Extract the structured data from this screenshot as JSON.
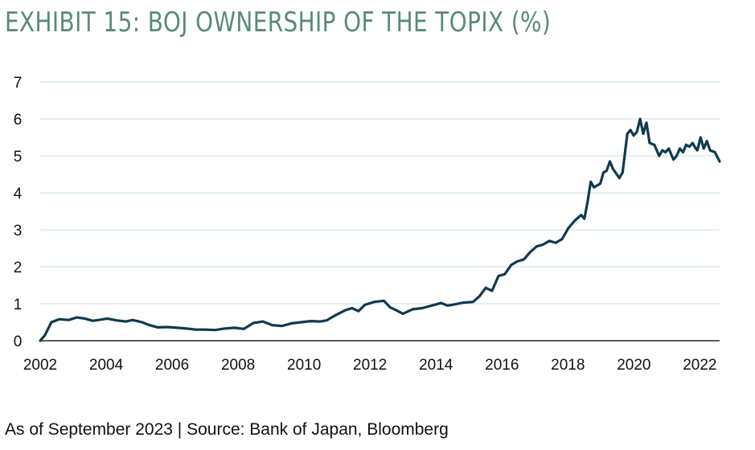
{
  "title": "EXHIBIT 15: BOJ OWNERSHIP OF THE TOPIX (%)",
  "footnote": "As of September 2023 | Source: Bank of Japan, Bloomberg",
  "colors": {
    "title": "#5a8a78",
    "line": "#0f3a4f",
    "grid": "#c9dde6",
    "axis": "#222222"
  },
  "chart_data": {
    "type": "line",
    "title": "EXHIBIT 15: BOJ OWNERSHIP OF THE TOPIX (%)",
    "xlabel": "",
    "ylabel": "",
    "xlim": [
      2002,
      2022.6
    ],
    "ylim": [
      0,
      7
    ],
    "grid": true,
    "x_ticks": [
      2002,
      2004,
      2006,
      2008,
      2010,
      2012,
      2014,
      2016,
      2018,
      2020,
      2022
    ],
    "y_ticks": [
      0,
      1,
      2,
      3,
      4,
      5,
      6,
      7
    ],
    "series": [
      {
        "values": [
          [
            2002.0,
            0.0
          ],
          [
            2002.15,
            0.15
          ],
          [
            2002.35,
            0.5
          ],
          [
            2002.6,
            0.58
          ],
          [
            2002.9,
            0.56
          ],
          [
            2003.15,
            0.63
          ],
          [
            2003.4,
            0.6
          ],
          [
            2003.65,
            0.54
          ],
          [
            2003.9,
            0.57
          ],
          [
            2004.1,
            0.6
          ],
          [
            2004.4,
            0.55
          ],
          [
            2004.7,
            0.52
          ],
          [
            2004.9,
            0.56
          ],
          [
            2005.2,
            0.5
          ],
          [
            2005.4,
            0.43
          ],
          [
            2005.7,
            0.36
          ],
          [
            2006.0,
            0.37
          ],
          [
            2006.3,
            0.35
          ],
          [
            2006.6,
            0.33
          ],
          [
            2006.9,
            0.3
          ],
          [
            2007.2,
            0.3
          ],
          [
            2007.5,
            0.29
          ],
          [
            2007.8,
            0.33
          ],
          [
            2008.1,
            0.35
          ],
          [
            2008.4,
            0.32
          ],
          [
            2008.7,
            0.48
          ],
          [
            2009.0,
            0.52
          ],
          [
            2009.3,
            0.42
          ],
          [
            2009.6,
            0.4
          ],
          [
            2009.9,
            0.47
          ],
          [
            2010.2,
            0.5
          ],
          [
            2010.5,
            0.53
          ],
          [
            2010.8,
            0.52
          ],
          [
            2011.0,
            0.55
          ],
          [
            2011.3,
            0.7
          ],
          [
            2011.6,
            0.83
          ],
          [
            2011.8,
            0.88
          ],
          [
            2012.0,
            0.8
          ],
          [
            2012.2,
            0.97
          ],
          [
            2012.5,
            1.05
          ],
          [
            2012.8,
            1.08
          ],
          [
            2013.0,
            0.9
          ],
          [
            2013.2,
            0.82
          ],
          [
            2013.4,
            0.73
          ],
          [
            2013.7,
            0.85
          ],
          [
            2014.0,
            0.88
          ],
          [
            2014.3,
            0.95
          ],
          [
            2014.6,
            1.02
          ],
          [
            2014.8,
            0.95
          ],
          [
            2015.0,
            0.98
          ],
          [
            2015.3,
            1.03
          ],
          [
            2015.6,
            1.05
          ],
          [
            2015.8,
            1.2
          ],
          [
            2016.0,
            1.43
          ],
          [
            2016.2,
            1.35
          ],
          [
            2016.4,
            1.75
          ],
          [
            2016.6,
            1.8
          ],
          [
            2016.8,
            2.05
          ],
          [
            2017.0,
            2.15
          ],
          [
            2017.2,
            2.2
          ],
          [
            2017.4,
            2.4
          ],
          [
            2017.6,
            2.55
          ],
          [
            2017.8,
            2.6
          ],
          [
            2018.0,
            2.7
          ],
          [
            2018.2,
            2.65
          ],
          [
            2018.4,
            2.75
          ],
          [
            2018.6,
            3.05
          ],
          [
            2018.8,
            3.25
          ],
          [
            2019.0,
            3.4
          ],
          [
            2019.1,
            3.3
          ],
          [
            2019.2,
            3.75
          ],
          [
            2019.3,
            4.3
          ],
          [
            2019.4,
            4.15
          ],
          [
            2019.6,
            4.25
          ],
          [
            2019.7,
            4.55
          ],
          [
            2019.8,
            4.6
          ],
          [
            2019.9,
            4.85
          ],
          [
            2020.0,
            4.65
          ],
          [
            2020.2,
            4.4
          ],
          [
            2020.3,
            4.55
          ],
          [
            2020.45,
            5.6
          ],
          [
            2020.55,
            5.7
          ],
          [
            2020.65,
            5.55
          ],
          [
            2020.75,
            5.65
          ],
          [
            2020.85,
            6.0
          ],
          [
            2020.95,
            5.6
          ],
          [
            2021.05,
            5.9
          ],
          [
            2021.15,
            5.35
          ],
          [
            2021.3,
            5.3
          ],
          [
            2021.45,
            5.0
          ],
          [
            2021.55,
            5.15
          ],
          [
            2021.65,
            5.1
          ],
          [
            2021.75,
            5.2
          ],
          [
            2021.9,
            4.9
          ],
          [
            2022.0,
            5.0
          ],
          [
            2022.1,
            5.2
          ],
          [
            2022.2,
            5.1
          ],
          [
            2022.3,
            5.3
          ],
          [
            2022.4,
            5.25
          ],
          [
            2022.5,
            5.35
          ],
          [
            2022.6,
            5.2
          ],
          [
            2022.65,
            5.15
          ],
          [
            2022.75,
            5.5
          ],
          [
            2022.85,
            5.2
          ],
          [
            2022.95,
            5.4
          ],
          [
            2023.05,
            5.15
          ],
          [
            2023.2,
            5.1
          ],
          [
            2023.35,
            4.85
          ]
        ]
      }
    ]
  }
}
